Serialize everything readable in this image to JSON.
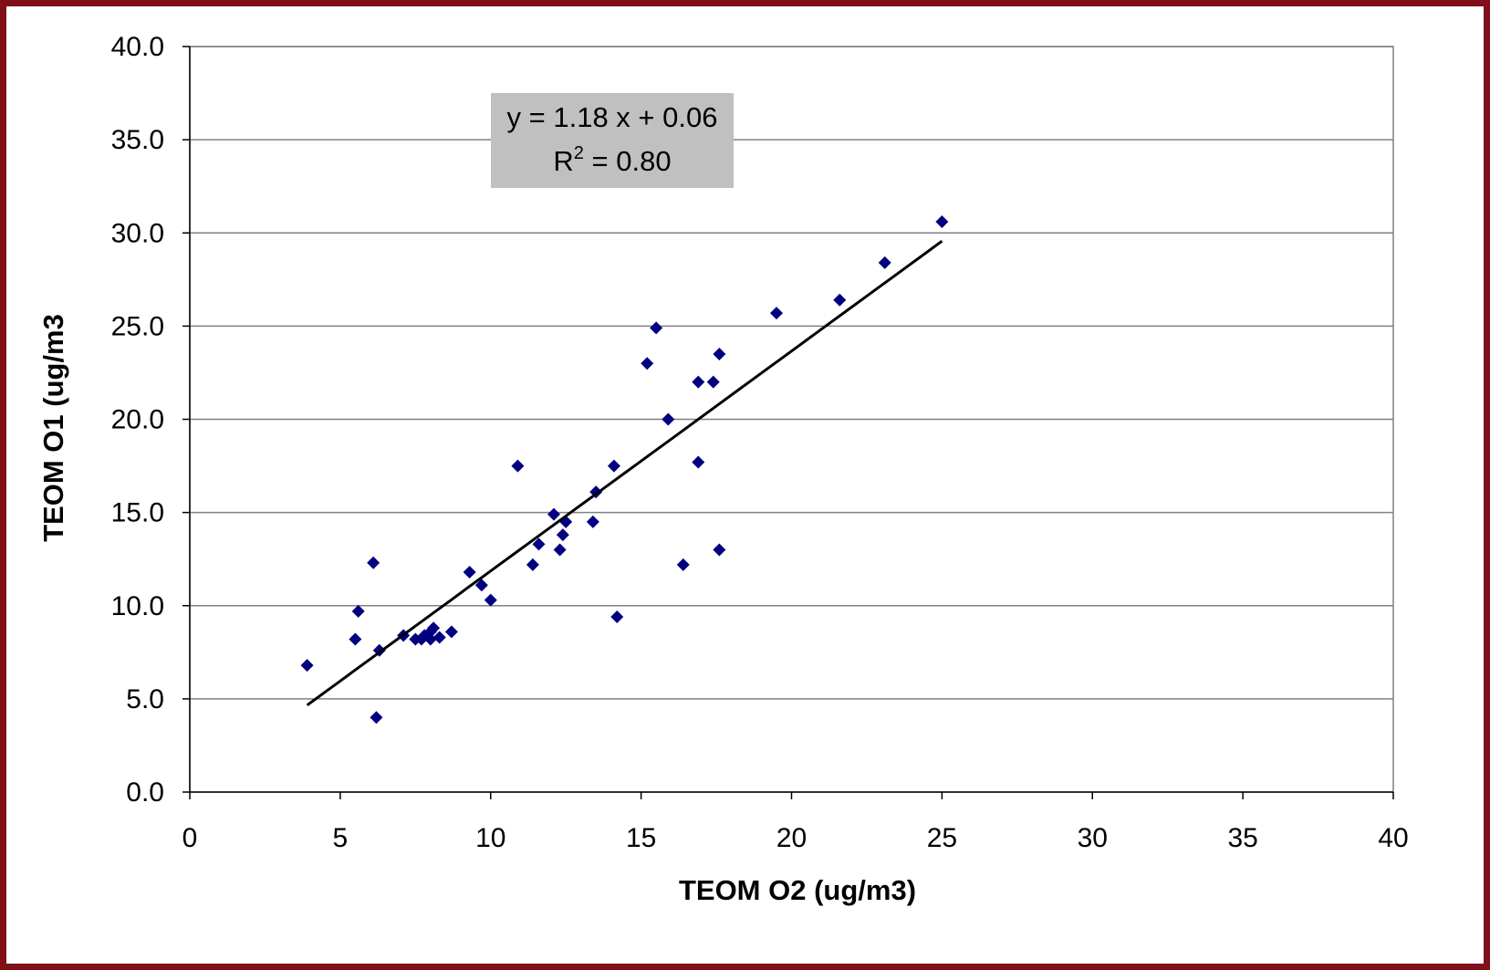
{
  "colors": {
    "frame": "#7f0f18",
    "marker": "#000080",
    "trendline": "#000000",
    "gridline": "#808080",
    "annotation_bg": "#c0c0c0"
  },
  "chart_data": {
    "type": "scatter",
    "title": "",
    "xlabel": "TEOM O2 (ug/m3)",
    "ylabel": "TEOM O1 (ug/m3",
    "xlim": [
      0,
      40
    ],
    "ylim": [
      0,
      40
    ],
    "x_ticks": [
      "0",
      "5",
      "10",
      "15",
      "20",
      "25",
      "30",
      "35",
      "40"
    ],
    "y_ticks": [
      "0.0",
      "5.0",
      "10.0",
      "15.0",
      "20.0",
      "25.0",
      "30.0",
      "35.0",
      "40.0"
    ],
    "grid": "horizontal",
    "legend": "none",
    "annotation": {
      "equation": "y = 1.18 x + 0.06",
      "r2_label": "R",
      "r2_sup": "2",
      "r2_value": " = 0.80"
    },
    "trendline": {
      "slope": 1.18,
      "intercept": 0.06,
      "x_range": [
        3.9,
        25.0
      ]
    },
    "series": [
      {
        "marker": "diamond",
        "points": [
          [
            3.9,
            6.8
          ],
          [
            5.5,
            8.2
          ],
          [
            5.6,
            9.7
          ],
          [
            6.1,
            12.3
          ],
          [
            6.2,
            4.0
          ],
          [
            6.3,
            7.6
          ],
          [
            7.1,
            8.4
          ],
          [
            7.5,
            8.2
          ],
          [
            7.7,
            8.2
          ],
          [
            7.8,
            8.4
          ],
          [
            8.0,
            8.6
          ],
          [
            8.0,
            8.2
          ],
          [
            8.1,
            8.8
          ],
          [
            8.3,
            8.3
          ],
          [
            8.7,
            8.6
          ],
          [
            9.3,
            11.8
          ],
          [
            9.7,
            11.1
          ],
          [
            10.0,
            10.3
          ],
          [
            10.9,
            17.5
          ],
          [
            11.4,
            12.2
          ],
          [
            11.6,
            13.3
          ],
          [
            12.1,
            14.9
          ],
          [
            12.3,
            13.0
          ],
          [
            12.4,
            13.8
          ],
          [
            12.5,
            14.5
          ],
          [
            13.4,
            14.5
          ],
          [
            13.5,
            16.1
          ],
          [
            14.1,
            17.5
          ],
          [
            14.2,
            9.4
          ],
          [
            15.2,
            23.0
          ],
          [
            15.5,
            24.9
          ],
          [
            15.9,
            20.0
          ],
          [
            16.4,
            12.2
          ],
          [
            16.9,
            22.0
          ],
          [
            16.9,
            17.7
          ],
          [
            17.4,
            22.0
          ],
          [
            17.6,
            23.5
          ],
          [
            17.6,
            13.0
          ],
          [
            19.5,
            25.7
          ],
          [
            21.6,
            26.4
          ],
          [
            23.1,
            28.4
          ],
          [
            25.0,
            30.6
          ]
        ]
      }
    ]
  }
}
